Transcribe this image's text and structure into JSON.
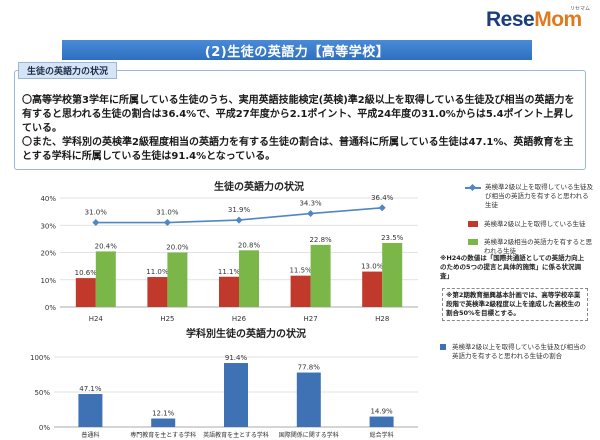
{
  "logo": {
    "text_main": "ReseMom",
    "sub": "リセマム"
  },
  "banner": {
    "title": "(2)生徒の英語力【高等学校】"
  },
  "summary": {
    "tab_label": "生徒の英語力の状況",
    "para1": "〇高等学校第3学年に所属している生徒のうち、実用英語技能検定(英検)準2級以上を取得している生徒及び相当の英語力を有すると思われる生徒の割合は36.4%で、平成27年度から2.1ポイント、平成24年度の31.0%からは5.4ポイント上昇している。",
    "para2": "〇また、学科別の英検準2級程度相当の英語力を有する生徒の割合は、普通科に所属している生徒は47.1%、英語教育を主とする学科に所属している生徒は91.4%となっている。"
  },
  "notes": {
    "n1": "※H24の数値は「国際共通語としての英語力向上のための5つの提言と具体的施策」に係る状況調査」",
    "n2": "※第2期教育振興基本計画では、高等学校卒業段階で英検準2級程度以上を達成した高校生の割合50%を目標とする。"
  },
  "chart_data": [
    {
      "type": "bar",
      "title": "生徒の英語力の状況",
      "categories": [
        "H24",
        "H25",
        "H26",
        "H27",
        "H28"
      ],
      "yticks": [
        "0%",
        "10%",
        "20%",
        "30%",
        "40%"
      ],
      "ylim": [
        0,
        40
      ],
      "series": [
        {
          "name": "英検準2級以上を取得している生徒及び相当の英語力を有すると思われる生徒",
          "kind": "line",
          "color": "#4f86c6",
          "values": [
            31.0,
            31.0,
            31.9,
            34.3,
            36.4
          ],
          "labels": [
            "31.0%",
            "31.0%",
            "31.9%",
            "34.3%",
            "36.4%"
          ]
        },
        {
          "name": "英検準2級以上を取得している生徒",
          "kind": "bar",
          "color": "#c0392b",
          "values": [
            10.6,
            11.0,
            11.1,
            11.5,
            13.0
          ],
          "labels": [
            "10.6%",
            "11.0%",
            "11.1%",
            "11.5%",
            "13.0%"
          ]
        },
        {
          "name": "英検準2級相当の英語力を有すると思われる生徒",
          "kind": "bar",
          "color": "#7ab648",
          "values": [
            20.4,
            20.0,
            20.8,
            22.8,
            23.5
          ],
          "labels": [
            "20.4%",
            "20.0%",
            "20.8%",
            "22.8%",
            "23.5%"
          ]
        }
      ],
      "grid": true,
      "legend": "right"
    },
    {
      "type": "bar",
      "title": "学科別生徒の英語力の状況",
      "categories": [
        "普通科",
        "専門教育を主とする学科",
        "英語教育を主とする学科",
        "国際関係に関する学科",
        "総合学科"
      ],
      "yticks": [
        "0%",
        "50%",
        "100%"
      ],
      "ylim": [
        0,
        100
      ],
      "series": [
        {
          "name": "英検準2級以上を取得している生徒及び相当の英語力を有すると思われる生徒の割合",
          "color": "#3f72b5",
          "values": [
            47.1,
            12.1,
            91.4,
            77.8,
            14.9
          ],
          "labels": [
            "47.1%",
            "12.1%",
            "91.4%",
            "77.8%",
            "14.9%"
          ]
        }
      ],
      "grid": true,
      "legend": "right"
    }
  ]
}
